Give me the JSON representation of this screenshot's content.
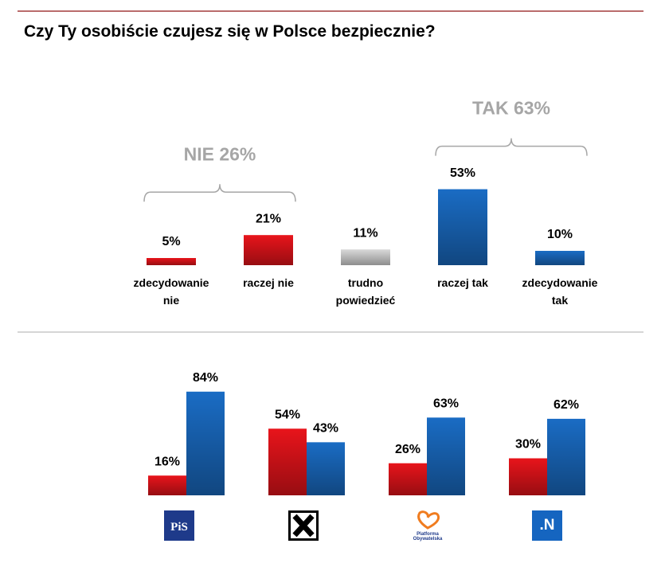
{
  "chart_data": [
    {
      "type": "bar",
      "title": "Czy Ty osobiście czujesz się w Polsce bezpiecznie?",
      "categories": [
        "zdecydowanie nie",
        "raczej nie",
        "trudno powiedzieć",
        "raczej tak",
        "zdecydowanie tak"
      ],
      "values": [
        5,
        21,
        11,
        53,
        10
      ],
      "value_labels": [
        "5%",
        "21%",
        "11%",
        "53%",
        "10%"
      ],
      "colors": [
        "#e8141b",
        "#e8141b",
        "#d9d9d9",
        "#1a6cc4",
        "#1a6cc4"
      ],
      "annotations": [
        {
          "text": "NIE 26%",
          "from": 0,
          "to": 1
        },
        {
          "text": "TAK 63%",
          "from": 3,
          "to": 4
        }
      ]
    },
    {
      "type": "grouped_bar",
      "categories": [
        "PiS",
        null,
        "Platforma Obywatelska",
        ".N"
      ],
      "series": [
        {
          "color": "#e8141b",
          "values": [
            16,
            54,
            26,
            30
          ],
          "value_labels": [
            "16%",
            "54%",
            "26%",
            "30%"
          ]
        },
        {
          "color": "#1a6cc4",
          "values": [
            84,
            43,
            63,
            62
          ],
          "value_labels": [
            "84%",
            "43%",
            "63%",
            "62%"
          ]
        }
      ]
    }
  ]
}
